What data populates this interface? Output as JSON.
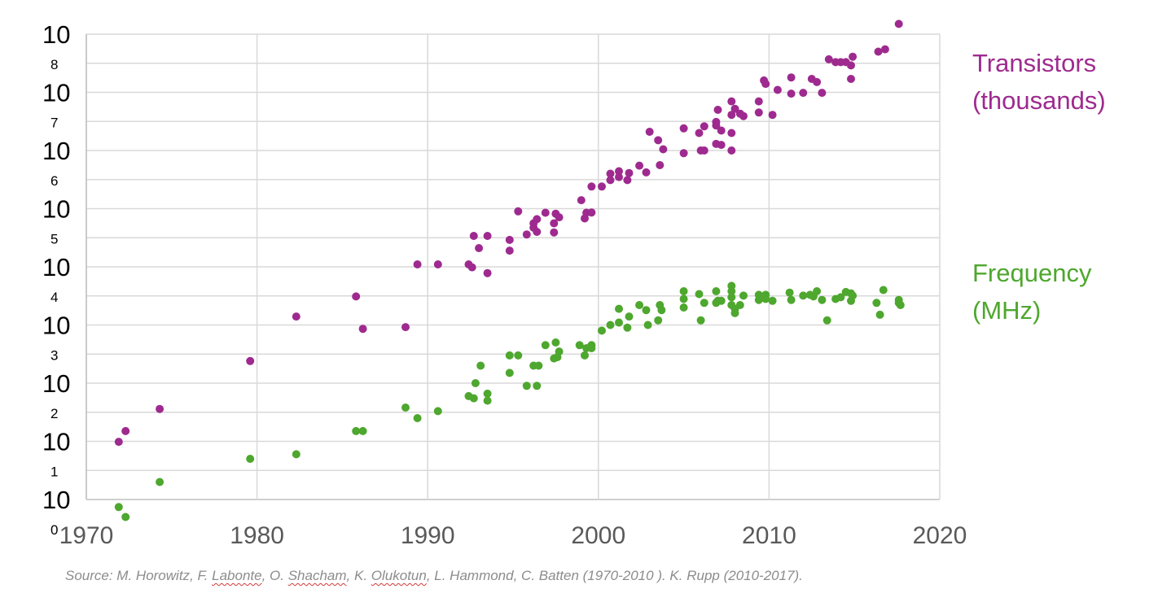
{
  "chart_data": {
    "type": "scatter",
    "title": "",
    "xlabel": "",
    "ylabel": "",
    "xlim": [
      1970,
      2020
    ],
    "ylim_log10": [
      0,
      8
    ],
    "y_scale": "log",
    "grid": true,
    "x_ticks": [
      "1970",
      "1980",
      "1990",
      "2000",
      "2010",
      "2020"
    ],
    "y_ticks": [
      {
        "base": "10",
        "exp": "8"
      },
      {
        "base": "10",
        "exp": "7"
      },
      {
        "base": "10",
        "exp": "6"
      },
      {
        "base": "10",
        "exp": "5"
      },
      {
        "base": "10",
        "exp": "4"
      },
      {
        "base": "10",
        "exp": "3"
      },
      {
        "base": "10",
        "exp": "2"
      },
      {
        "base": "10",
        "exp": "1"
      },
      {
        "base": "10",
        "exp": "0"
      }
    ],
    "series": [
      {
        "name": "Transistors (thousands)",
        "legend_lines": [
          "Transistors",
          "(thousands)"
        ],
        "color": "#9e2a8f",
        "points": [
          [
            1971.9,
            9.8
          ],
          [
            1972.3,
            15
          ],
          [
            1974.3,
            36
          ],
          [
            1979.6,
            240
          ],
          [
            1982.3,
            1400
          ],
          [
            1985.8,
            3100
          ],
          [
            1986.2,
            860
          ],
          [
            1988.7,
            920
          ],
          [
            1989.4,
            11000
          ],
          [
            1990.6,
            11000
          ],
          [
            1992.4,
            11000
          ],
          [
            1992.6,
            9800
          ],
          [
            1992.7,
            34000
          ],
          [
            1993.0,
            21000
          ],
          [
            1993.5,
            34000
          ],
          [
            1993.5,
            7800
          ],
          [
            1994.8,
            29000
          ],
          [
            1994.8,
            19000
          ],
          [
            1995.3,
            90000
          ],
          [
            1995.8,
            36000
          ],
          [
            1996.2,
            56000
          ],
          [
            1996.2,
            47000
          ],
          [
            1996.4,
            40000
          ],
          [
            1996.4,
            66000
          ],
          [
            1996.9,
            85000
          ],
          [
            1997.4,
            39000
          ],
          [
            1997.4,
            56000
          ],
          [
            1997.5,
            82000
          ],
          [
            1997.7,
            71000
          ],
          [
            1999.0,
            140000
          ],
          [
            1999.2,
            68000
          ],
          [
            1999.3,
            85000
          ],
          [
            1999.6,
            86000
          ],
          [
            1999.6,
            240000
          ],
          [
            2000.2,
            240000
          ],
          [
            2000.7,
            310000
          ],
          [
            2000.7,
            400000
          ],
          [
            2001.2,
            350000
          ],
          [
            2001.2,
            440000
          ],
          [
            2001.7,
            310000
          ],
          [
            2001.8,
            410000
          ],
          [
            2002.4,
            550000
          ],
          [
            2002.8,
            420000
          ],
          [
            2003.0,
            2100000
          ],
          [
            2003.5,
            1500000
          ],
          [
            2003.6,
            560000
          ],
          [
            2003.8,
            1050000
          ],
          [
            2005.0,
            900000
          ],
          [
            2005.0,
            2400000
          ],
          [
            2005.9,
            2000000
          ],
          [
            2006.0,
            1000000
          ],
          [
            2006.2,
            1000000
          ],
          [
            2006.2,
            2600000
          ],
          [
            2006.9,
            3100000
          ],
          [
            2006.9,
            2700000
          ],
          [
            2006.9,
            1300000
          ],
          [
            2007.0,
            5000000
          ],
          [
            2007.2,
            1250000
          ],
          [
            2007.2,
            2200000
          ],
          [
            2007.8,
            2000000
          ],
          [
            2007.8,
            1000000
          ],
          [
            2007.8,
            4100000
          ],
          [
            2007.8,
            7000000
          ],
          [
            2008.0,
            5200000
          ],
          [
            2008.3,
            4300000
          ],
          [
            2008.5,
            3900000
          ],
          [
            2009.4,
            4500000
          ],
          [
            2009.4,
            7000000
          ],
          [
            2009.7,
            16000000
          ],
          [
            2009.8,
            14000000
          ],
          [
            2010.2,
            4100000
          ],
          [
            2010.5,
            11000000
          ],
          [
            2011.3,
            9500000
          ],
          [
            2011.3,
            18000000
          ],
          [
            2012.0,
            9800000
          ],
          [
            2012.5,
            17000000
          ],
          [
            2012.8,
            15000000
          ],
          [
            2013.1,
            9800000
          ],
          [
            2013.5,
            37000000
          ],
          [
            2013.9,
            33000000
          ],
          [
            2014.2,
            33000000
          ],
          [
            2014.5,
            33000000
          ],
          [
            2014.8,
            29000000
          ],
          [
            2014.8,
            17000000
          ],
          [
            2014.9,
            41000000
          ],
          [
            2016.4,
            50000000
          ],
          [
            2016.8,
            55000000
          ],
          [
            2017.6,
            150000000
          ]
        ]
      },
      {
        "name": "Frequency (MHz)",
        "legend_lines": [
          "Frequency",
          "(MHz)"
        ],
        "color": "#4ea72e",
        "points": [
          [
            1971.9,
            0.74
          ],
          [
            1972.3,
            0.5
          ],
          [
            1974.3,
            2.0
          ],
          [
            1979.6,
            5.0
          ],
          [
            1982.3,
            6.0
          ],
          [
            1985.8,
            15
          ],
          [
            1986.2,
            15
          ],
          [
            1988.7,
            38
          ],
          [
            1989.4,
            25
          ],
          [
            1990.6,
            33
          ],
          [
            1992.4,
            60
          ],
          [
            1992.7,
            55
          ],
          [
            1992.8,
            100
          ],
          [
            1993.1,
            200
          ],
          [
            1993.5,
            50
          ],
          [
            1993.5,
            66
          ],
          [
            1994.8,
            150
          ],
          [
            1994.8,
            300
          ],
          [
            1995.3,
            300
          ],
          [
            1995.8,
            90
          ],
          [
            1996.2,
            200
          ],
          [
            1996.4,
            90
          ],
          [
            1996.5,
            200
          ],
          [
            1996.9,
            450
          ],
          [
            1997.4,
            266
          ],
          [
            1997.5,
            500
          ],
          [
            1997.6,
            280
          ],
          [
            1997.7,
            350
          ],
          [
            1998.9,
            450
          ],
          [
            1999.2,
            300
          ],
          [
            1999.3,
            400
          ],
          [
            1999.6,
            450
          ],
          [
            1999.6,
            400
          ],
          [
            2000.2,
            800
          ],
          [
            2000.7,
            1000
          ],
          [
            2001.2,
            1100
          ],
          [
            2001.2,
            1900
          ],
          [
            2001.7,
            900
          ],
          [
            2001.8,
            1400
          ],
          [
            2002.4,
            2200
          ],
          [
            2002.8,
            1800
          ],
          [
            2002.9,
            1000
          ],
          [
            2003.5,
            1200
          ],
          [
            2003.6,
            2200
          ],
          [
            2003.7,
            1800
          ],
          [
            2005.0,
            2000
          ],
          [
            2005.0,
            2800
          ],
          [
            2005.0,
            3800
          ],
          [
            2005.9,
            3400
          ],
          [
            2006.0,
            1200
          ],
          [
            2006.2,
            2400
          ],
          [
            2006.9,
            2400
          ],
          [
            2006.9,
            3800
          ],
          [
            2007.0,
            2600
          ],
          [
            2007.2,
            2600
          ],
          [
            2007.8,
            2200
          ],
          [
            2007.8,
            3000
          ],
          [
            2007.8,
            3800
          ],
          [
            2007.8,
            4700
          ],
          [
            2008.0,
            1900
          ],
          [
            2008.0,
            1600
          ],
          [
            2008.3,
            2200
          ],
          [
            2008.5,
            3200
          ],
          [
            2009.4,
            2700
          ],
          [
            2009.4,
            3300
          ],
          [
            2009.8,
            3300
          ],
          [
            2009.8,
            2800
          ],
          [
            2010.2,
            2600
          ],
          [
            2011.2,
            3600
          ],
          [
            2011.3,
            2700
          ],
          [
            2012.0,
            3200
          ],
          [
            2012.4,
            3300
          ],
          [
            2012.6,
            3100
          ],
          [
            2012.8,
            3800
          ],
          [
            2013.1,
            2700
          ],
          [
            2013.4,
            1200
          ],
          [
            2013.9,
            2800
          ],
          [
            2014.2,
            3000
          ],
          [
            2014.5,
            3700
          ],
          [
            2014.8,
            3500
          ],
          [
            2014.8,
            2600
          ],
          [
            2014.9,
            3200
          ],
          [
            2016.3,
            2400
          ],
          [
            2016.5,
            1500
          ],
          [
            2016.7,
            4000
          ],
          [
            2017.6,
            2400
          ],
          [
            2017.6,
            2700
          ],
          [
            2017.7,
            2200
          ]
        ]
      }
    ]
  },
  "source": {
    "prefix": "Source: M. Horowitz, F. ",
    "name1": "Labonte",
    "sep1": ", O. ",
    "name2": "Shacham",
    "sep2": ", K. ",
    "name3": "Olukotun",
    "suffix": ", L. Hammond, C. Batten (1970-2010 ). K. Rupp (2010-2017)."
  }
}
